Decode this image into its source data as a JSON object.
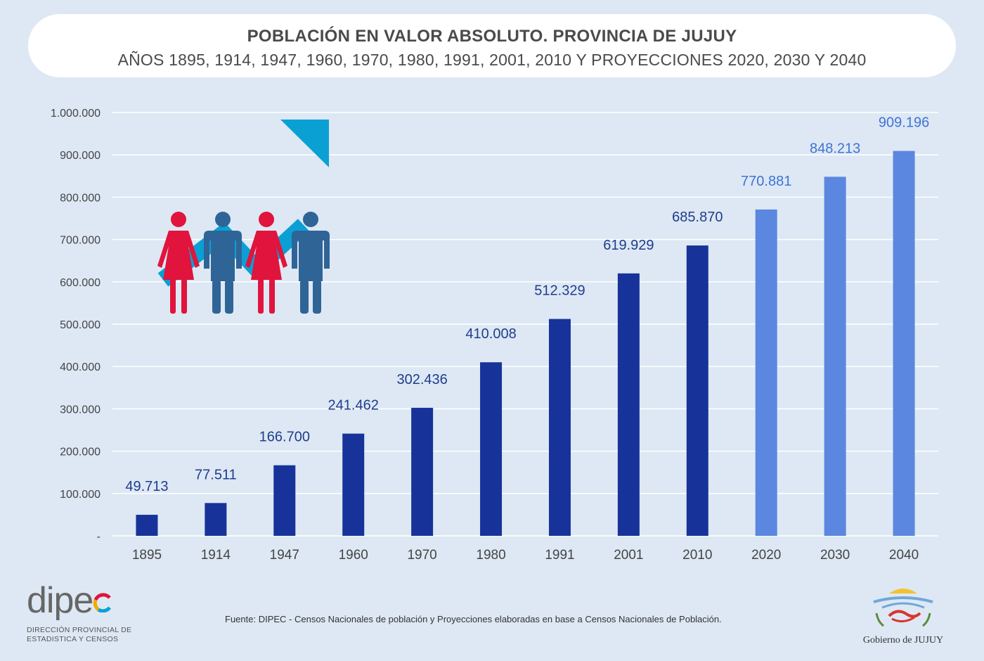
{
  "header": {
    "title": "POBLACIÓN EN VALOR ABSOLUTO. PROVINCIA DE JUJUY",
    "subtitle": "AÑOS 1895, 1914, 1947, 1960, 1970, 1980, 1991, 2001, 2010 Y PROYECCIONES 2020, 2030 Y 2040"
  },
  "chart_data": {
    "type": "bar",
    "title": "POBLACIÓN EN VALOR ABSOLUTO. PROVINCIA DE JUJUY",
    "categories": [
      "1895",
      "1914",
      "1947",
      "1960",
      "1970",
      "1980",
      "1991",
      "2001",
      "2010",
      "2020",
      "2030",
      "2040"
    ],
    "values": [
      49713,
      77511,
      166700,
      241462,
      302436,
      410008,
      512329,
      619929,
      685870,
      770881,
      848213,
      909196
    ],
    "value_labels": [
      "49.713",
      "77.511",
      "166.700",
      "241.462",
      "302.436",
      "410.008",
      "512.329",
      "619.929",
      "685.870",
      "770.881",
      "848.213",
      "909.196"
    ],
    "projected": [
      false,
      false,
      false,
      false,
      false,
      false,
      false,
      false,
      false,
      true,
      true,
      true
    ],
    "ylim": [
      0,
      1000000
    ],
    "yticks": [
      0,
      100000,
      200000,
      300000,
      400000,
      500000,
      600000,
      700000,
      800000,
      900000,
      1000000
    ],
    "ytick_labels": [
      "-",
      "100.000",
      "200.000",
      "300.000",
      "400.000",
      "500.000",
      "600.000",
      "700.000",
      "800.000",
      "900.000",
      "1.000.000"
    ],
    "grid": true,
    "colors": {
      "census": "#17339a",
      "projection": "#5b87e0",
      "census_label": "#1f3d8c",
      "projection_label": "#3f73d6"
    }
  },
  "illustration": {
    "arrow_color": "#0aa0d4",
    "woman_color": "#e0143c",
    "man_color": "#2f6497",
    "figures": [
      "woman-icon",
      "man-icon",
      "woman-icon",
      "man-icon"
    ]
  },
  "footer": {
    "source": "Fuente: DIPEC - Censos Nacionales de población y Proyecciones elaboradas en base a Censos Nacionales de Población.",
    "dipec_logo_text": "dipe",
    "dipec_line1": "DIRECCIÓN PROVINCIAL DE",
    "dipec_line2": "ESTADISTICA Y CENSOS",
    "gov_caption": "Gobierno de JUJUY"
  }
}
